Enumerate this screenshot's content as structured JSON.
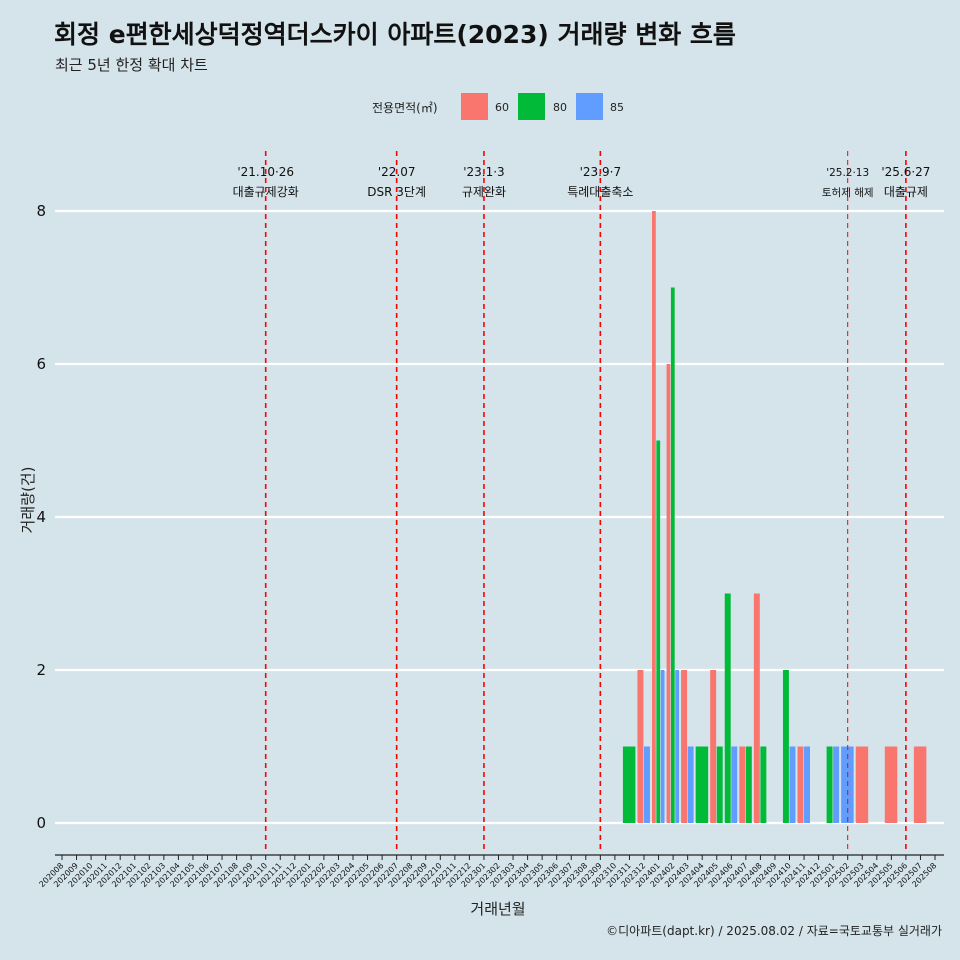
{
  "header": {
    "title": "회정 e편한세상덕정역더스카이 아파트(2023) 거래량 변화 흐름",
    "subtitle": "최근 5년 한정 확대 차트"
  },
  "legend": {
    "title": "전용면적(㎡)",
    "items": [
      {
        "label": "60",
        "color": "#F8766D"
      },
      {
        "label": "80",
        "color": "#00BA38"
      },
      {
        "label": "85",
        "color": "#619CFF"
      }
    ]
  },
  "caption": "©디아파트(dapt.kr) / 2025.08.02 / 자료=국토교통부 실거래가",
  "chart_data": {
    "type": "bar",
    "xlabel": "거래년월",
    "ylabel": "거래량(건)",
    "ylim": [
      0,
      8
    ],
    "yticks": [
      0,
      2,
      4,
      6,
      8
    ],
    "grid": true,
    "legend_position": "top",
    "categories": [
      "202008",
      "202009",
      "202010",
      "202011",
      "202012",
      "202101",
      "202102",
      "202103",
      "202104",
      "202105",
      "202106",
      "202107",
      "202108",
      "202109",
      "202110",
      "202111",
      "202112",
      "202201",
      "202202",
      "202203",
      "202204",
      "202205",
      "202206",
      "202207",
      "202208",
      "202209",
      "202210",
      "202211",
      "202212",
      "202301",
      "202302",
      "202303",
      "202304",
      "202305",
      "202306",
      "202307",
      "202308",
      "202309",
      "202310",
      "202311",
      "202312",
      "202401",
      "202402",
      "202403",
      "202404",
      "202405",
      "202406",
      "202407",
      "202408",
      "202409",
      "202410",
      "202411",
      "202412",
      "202501",
      "202502",
      "202503",
      "202504",
      "202505",
      "202506",
      "202507",
      "202508"
    ],
    "series": [
      {
        "name": "60",
        "color": "#F8766D",
        "data": [
          {
            "x": "202312",
            "y": 2
          },
          {
            "x": "202401",
            "y": 8
          },
          {
            "x": "202402",
            "y": 6
          },
          {
            "x": "202403",
            "y": 2
          },
          {
            "x": "202405",
            "y": 2
          },
          {
            "x": "202407",
            "y": 1
          },
          {
            "x": "202408",
            "y": 3
          },
          {
            "x": "202411",
            "y": 1
          },
          {
            "x": "202503",
            "y": 1
          },
          {
            "x": "202505",
            "y": 1
          },
          {
            "x": "202507",
            "y": 1
          }
        ]
      },
      {
        "name": "80",
        "color": "#00BA38",
        "data": [
          {
            "x": "202311",
            "y": 1
          },
          {
            "x": "202401",
            "y": 5
          },
          {
            "x": "202402",
            "y": 7
          },
          {
            "x": "202404",
            "y": 1
          },
          {
            "x": "202405",
            "y": 1
          },
          {
            "x": "202406",
            "y": 3
          },
          {
            "x": "202407",
            "y": 1
          },
          {
            "x": "202408",
            "y": 1
          },
          {
            "x": "202410",
            "y": 2
          },
          {
            "x": "202501",
            "y": 1
          }
        ]
      },
      {
        "name": "85",
        "color": "#619CFF",
        "data": [
          {
            "x": "202312",
            "y": 1
          },
          {
            "x": "202401",
            "y": 2
          },
          {
            "x": "202402",
            "y": 2
          },
          {
            "x": "202403",
            "y": 1
          },
          {
            "x": "202406",
            "y": 1
          },
          {
            "x": "202410",
            "y": 1
          },
          {
            "x": "202411",
            "y": 1
          },
          {
            "x": "202501",
            "y": 1
          },
          {
            "x": "202502",
            "y": 1
          }
        ]
      }
    ],
    "annotations": [
      {
        "x": "202110",
        "date": "'21.10·26",
        "label": "대출규제강화"
      },
      {
        "x": "202207",
        "date": "'22.07",
        "label": "DSR 3단계"
      },
      {
        "x": "202301",
        "date": "'23.1·3",
        "label": "규제완화"
      },
      {
        "x": "202309",
        "date": "'23.9·7",
        "label": "특례대출축소"
      },
      {
        "x": "202502",
        "date": "'25.2·13",
        "label": "토허제 해제"
      },
      {
        "x": "202506",
        "date": "'25.6·27",
        "label": "대출규제"
      }
    ]
  }
}
